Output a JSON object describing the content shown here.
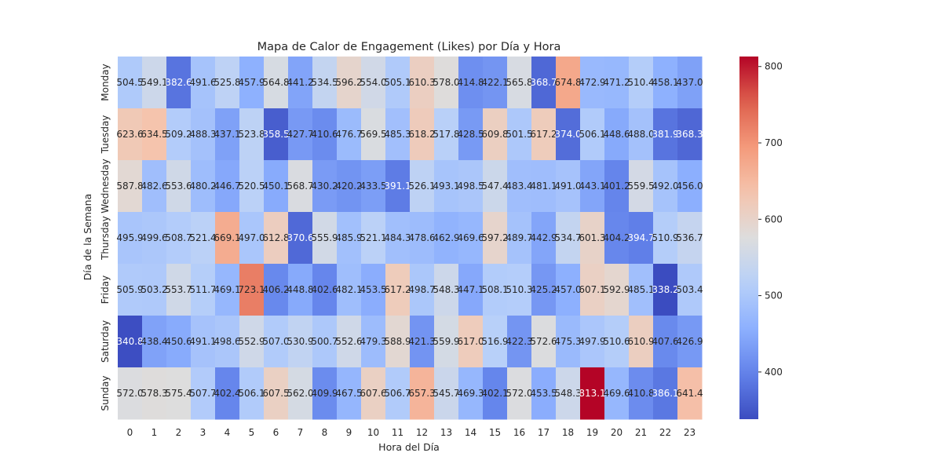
{
  "chart_data": {
    "type": "heatmap",
    "title": "Mapa de Calor de Engagement (Likes) por Día y Hora",
    "xlabel": "Hora del Día",
    "ylabel": "Día de la Semana",
    "x_categories": [
      "0",
      "1",
      "2",
      "3",
      "4",
      "5",
      "6",
      "7",
      "8",
      "9",
      "10",
      "11",
      "12",
      "13",
      "14",
      "15",
      "16",
      "17",
      "18",
      "19",
      "20",
      "21",
      "22",
      "23"
    ],
    "y_categories": [
      "Monday",
      "Tuesday",
      "Wednesday",
      "Thursday",
      "Friday",
      "Saturday",
      "Sunday"
    ],
    "values": [
      [
        504.5,
        549.1,
        382.6,
        491.6,
        525.8,
        457.9,
        564.8,
        441.2,
        534.5,
        596.2,
        554.0,
        505.1,
        610.3,
        578.0,
        414.8,
        422.1,
        565.8,
        368.7,
        674.8,
        472.9,
        471.2,
        510.4,
        458.1,
        437.0
      ],
      [
        623.6,
        634.5,
        509.2,
        488.3,
        437.1,
        523.8,
        358.5,
        427.7,
        410.6,
        476.7,
        569.5,
        485.3,
        618.2,
        517.8,
        428.5,
        609.8,
        501.5,
        617.2,
        374.0,
        506.1,
        448.6,
        488.0,
        381.9,
        368.3
      ],
      [
        587.8,
        482.6,
        553.6,
        480.2,
        446.7,
        520.5,
        450.1,
        568.7,
        430.2,
        420.2,
        433.5,
        391.1,
        526.1,
        493.1,
        498.5,
        547.4,
        483.4,
        481.1,
        491.0,
        443.1,
        401.2,
        559.5,
        492.0,
        456.0
      ],
      [
        495.9,
        499.6,
        508.7,
        521.4,
        669.1,
        497.0,
        612.8,
        370.6,
        555.9,
        485.9,
        521.1,
        484.3,
        478.6,
        462.9,
        469.6,
        597.2,
        489.7,
        442.9,
        534.7,
        601.3,
        404.2,
        394.7,
        510.9,
        536.7
      ],
      [
        505.9,
        503.2,
        553.7,
        511.7,
        469.1,
        723.1,
        406.2,
        448.8,
        402.6,
        482.1,
        453.5,
        617.2,
        498.7,
        548.3,
        447.1,
        508.1,
        510.3,
        425.2,
        457.0,
        607.1,
        592.9,
        485.1,
        338.2,
        503.4
      ],
      [
        340.8,
        438.4,
        450.6,
        491.1,
        498.6,
        552.9,
        507.0,
        530.9,
        500.7,
        552.6,
        479.3,
        588.9,
        421.3,
        559.9,
        617.0,
        516.9,
        422.3,
        572.6,
        475.3,
        497.9,
        510.6,
        610.9,
        407.6,
        426.9
      ],
      [
        572.0,
        578.3,
        575.4,
        507.7,
        402.4,
        506.1,
        607.5,
        562.0,
        409.9,
        467.5,
        607.6,
        506.7,
        657.3,
        545.7,
        469.3,
        402.1,
        572.0,
        453.5,
        548.3,
        813.1,
        469.6,
        410.8,
        386.1,
        641.4
      ]
    ],
    "colormap": "coolwarm",
    "vmin": 338.2,
    "vmax": 813.1,
    "colorbar_ticks": [
      400,
      500,
      600,
      700,
      800
    ],
    "grid": false
  }
}
